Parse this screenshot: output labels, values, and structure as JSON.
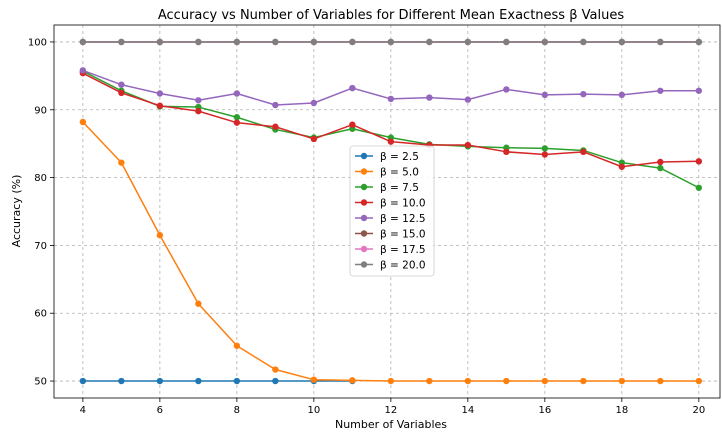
{
  "chart_data": {
    "type": "line",
    "title": "Accuracy vs Number of Variables for Different Mean Exactness β Values",
    "xlabel": "Number of Variables",
    "ylabel": "Accuracy (%)",
    "xlim": [
      3.25,
      20.55
    ],
    "ylim": [
      47.5,
      102.5
    ],
    "x_ticks": [
      4,
      6,
      8,
      10,
      12,
      14,
      16,
      18,
      20
    ],
    "y_ticks": [
      50,
      60,
      70,
      80,
      90,
      100
    ],
    "grid": true,
    "legend_position": "center",
    "series": [
      {
        "name": "β = 2.5",
        "color": "#1f77b4",
        "x": [
          4,
          5,
          6,
          7,
          8,
          9,
          10,
          11
        ],
        "values": [
          50,
          50,
          50,
          50,
          50,
          50,
          50,
          50
        ]
      },
      {
        "name": "β = 5.0",
        "color": "#ff7f0e",
        "x": [
          4,
          5,
          6,
          7,
          8,
          9,
          10,
          11,
          12,
          13,
          14,
          15,
          16,
          17,
          18,
          19,
          20
        ],
        "values": [
          88.2,
          82.2,
          71.5,
          61.4,
          55.2,
          51.7,
          50.2,
          50.1,
          50,
          50,
          50,
          50,
          50,
          50,
          50,
          50,
          50
        ]
      },
      {
        "name": "β = 7.5",
        "color": "#2ca02c",
        "x": [
          4,
          5,
          6,
          7,
          8,
          9,
          10,
          11,
          12,
          13,
          14,
          15,
          16,
          17,
          18,
          19,
          20
        ],
        "values": [
          95.7,
          92.8,
          90.5,
          90.4,
          88.9,
          87.1,
          85.9,
          87.2,
          85.9,
          84.9,
          84.6,
          84.4,
          84.3,
          84.0,
          82.2,
          81.4,
          78.5
        ]
      },
      {
        "name": "β = 10.0",
        "color": "#d62728",
        "x": [
          4,
          5,
          6,
          7,
          8,
          9,
          10,
          11,
          12,
          13,
          14,
          15,
          16,
          17,
          18,
          19,
          20
        ],
        "values": [
          95.4,
          92.5,
          90.6,
          89.8,
          88.1,
          87.5,
          85.7,
          87.8,
          85.3,
          84.8,
          84.8,
          83.8,
          83.4,
          83.8,
          81.6,
          82.3,
          82.4
        ]
      },
      {
        "name": "β = 12.5",
        "color": "#9467bd",
        "x": [
          4,
          5,
          6,
          7,
          8,
          9,
          10,
          11,
          12,
          13,
          14,
          15,
          16,
          17,
          18,
          19,
          20
        ],
        "values": [
          95.8,
          93.7,
          92.4,
          91.4,
          92.4,
          90.7,
          91.0,
          93.2,
          91.6,
          91.8,
          91.5,
          93.0,
          92.2,
          92.3,
          92.2,
          92.8,
          92.8
        ]
      },
      {
        "name": "β = 15.0",
        "color": "#8c564b",
        "x": [
          4,
          5,
          6,
          7,
          8,
          9,
          10,
          11,
          12,
          13,
          14,
          15,
          16,
          17,
          18,
          19,
          20
        ],
        "values": [
          100,
          100,
          100,
          100,
          100,
          100,
          100,
          100,
          100,
          100,
          100,
          100,
          100,
          100,
          100,
          100,
          100
        ]
      },
      {
        "name": "β = 17.5",
        "color": "#e377c2",
        "x": [
          4,
          5,
          6,
          7,
          8,
          9,
          10,
          11,
          12,
          13,
          14,
          15,
          16,
          17,
          18,
          19,
          20
        ],
        "values": [
          100,
          100,
          100,
          100,
          100,
          100,
          100,
          100,
          100,
          100,
          100,
          100,
          100,
          100,
          100,
          100,
          100
        ]
      },
      {
        "name": "β = 20.0",
        "color": "#7f7f7f",
        "x": [
          4,
          5,
          6,
          7,
          8,
          9,
          10,
          11,
          12,
          13,
          14,
          15,
          16,
          17,
          18,
          19,
          20
        ],
        "values": [
          100,
          100,
          100,
          100,
          100,
          100,
          100,
          100,
          100,
          100,
          100,
          100,
          100,
          100,
          100,
          100,
          100
        ]
      }
    ]
  }
}
